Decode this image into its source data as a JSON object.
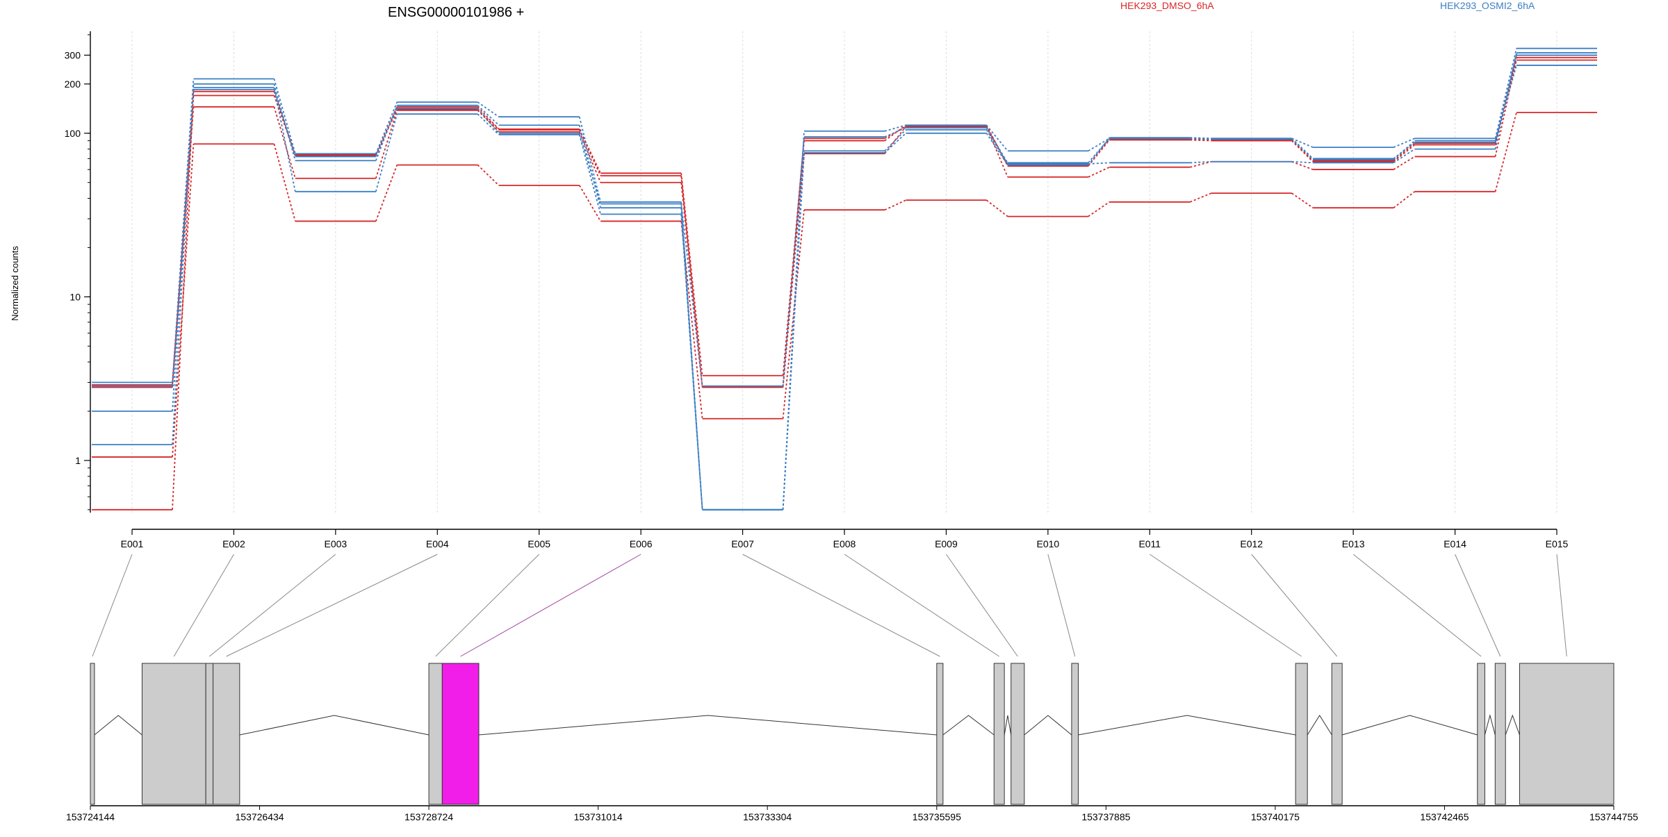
{
  "chart_data": {
    "type": "line",
    "title": "ENSG00000101986 +",
    "ylabel": "Normalized counts",
    "yscale": "log",
    "ylim": [
      0.48,
      420
    ],
    "yticks": [
      1,
      10,
      100,
      200,
      300
    ],
    "legend": [
      {
        "name": "HEK293_DMSO_6hA",
        "color": "#d62728"
      },
      {
        "name": "HEK293_OSMI2_6hA",
        "color": "#3b7fc4"
      }
    ],
    "exons": [
      "E001",
      "E002",
      "E003",
      "E004",
      "E005",
      "E006",
      "E007",
      "E008",
      "E009",
      "E010",
      "E011",
      "E012",
      "E013",
      "E014",
      "E015"
    ],
    "highlighted_exon": "E006",
    "series": [
      {
        "group": "HEK293_DMSO_6hA",
        "color": "#d62728",
        "values": [
          2.9,
          170,
          74,
          145,
          106,
          57,
          3.3,
          93,
          110,
          64,
          92,
          91,
          68,
          87,
          300
        ]
      },
      {
        "group": "HEK293_DMSO_6hA",
        "color": "#d62728",
        "values": [
          2.8,
          145,
          53,
          138,
          102,
          50,
          2.8,
          75,
          110,
          54,
          62,
          67,
          60,
          72,
          290
        ]
      },
      {
        "group": "HEK293_DMSO_6hA",
        "color": "#d62728",
        "values": [
          1.05,
          86,
          29,
          64,
          48,
          29,
          1.8,
          34,
          39,
          31,
          38,
          43,
          35,
          44,
          134
        ]
      },
      {
        "group": "HEK293_DMSO_6hA",
        "color": "#d62728",
        "values": [
          0.5,
          180,
          73,
          140,
          105,
          55,
          2.8,
          90,
          112,
          63,
          91,
          90,
          67,
          85,
          280
        ]
      },
      {
        "group": "HEK293_OSMI2_6hA",
        "color": "#3b7fc4",
        "values": [
          3.0,
          215,
          75,
          155,
          126,
          38,
          0.5,
          103,
          112,
          78,
          93,
          93,
          82,
          93,
          330
        ]
      },
      {
        "group": "HEK293_OSMI2_6hA",
        "color": "#3b7fc4",
        "values": [
          2.0,
          200,
          68,
          148,
          112,
          35,
          0.5,
          78,
          105,
          65,
          66,
          67,
          66,
          80,
          310
        ]
      },
      {
        "group": "HEK293_OSMI2_6hA",
        "color": "#3b7fc4",
        "values": [
          1.25,
          190,
          44,
          131,
          98,
          32,
          0.5,
          76,
          100,
          64,
          94,
          93,
          70,
          88,
          300
        ]
      },
      {
        "group": "HEK293_OSMI2_6hA",
        "color": "#3b7fc4",
        "values": [
          2.85,
          185,
          72,
          142,
          100,
          37,
          2.85,
          95,
          108,
          66,
          93,
          92,
          69,
          90,
          260
        ]
      }
    ],
    "gene_axis": {
      "range": [
        153724144,
        153744755
      ],
      "ticks": [
        153724144,
        153726434,
        153728724,
        153731014,
        153733304,
        153735595,
        153737885,
        153740175,
        153742465,
        153744755
      ]
    },
    "gene_model": [
      {
        "start": 153724144,
        "end": 153724200
      },
      {
        "start": 153724844,
        "end": 153725706
      },
      {
        "start": 153725706,
        "end": 153725804
      },
      {
        "start": 153725804,
        "end": 153726164
      },
      {
        "start": 153728724,
        "end": 153728905
      },
      {
        "start": 153728905,
        "end": 153729400,
        "highlight": true
      },
      {
        "start": 153735595,
        "end": 153735680
      },
      {
        "start": 153736370,
        "end": 153736510
      },
      {
        "start": 153736600,
        "end": 153736780
      },
      {
        "start": 153737420,
        "end": 153737510
      },
      {
        "start": 153740450,
        "end": 153740610
      },
      {
        "start": 153740940,
        "end": 153741080
      },
      {
        "start": 153742910,
        "end": 153743010
      },
      {
        "start": 153743150,
        "end": 153743290
      },
      {
        "start": 153743480,
        "end": 153744755
      }
    ],
    "colors": {
      "highlight": "#f01ee8",
      "exon_fill": "#cccccc",
      "grid": "#dddddd"
    }
  }
}
